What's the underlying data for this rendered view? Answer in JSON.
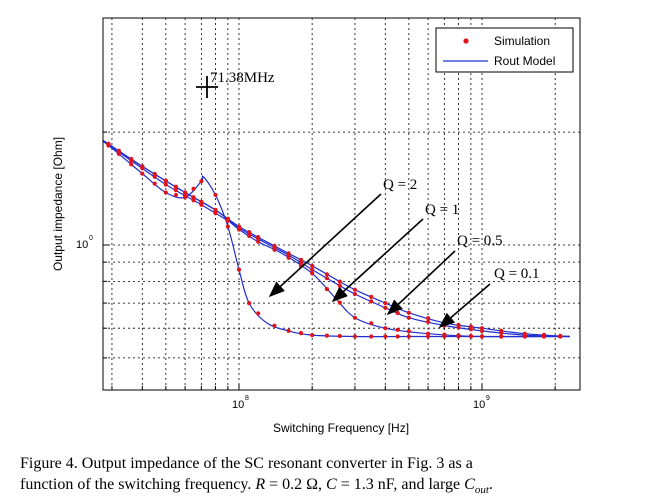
{
  "chart_data": {
    "type": "line",
    "xlabel": "Switching Frequency [Hz]",
    "ylabel": "Output impedance [Ohm]",
    "x_scale": "log",
    "y_scale": "log",
    "xlim": [
      26000000.0,
      2300000000.0
    ],
    "x_ticks": [
      {
        "base": "10",
        "exp": "8",
        "value": 100000000.0
      },
      {
        "base": "10",
        "exp": "9",
        "value": 1000000000.0
      }
    ],
    "y_ticks": [
      {
        "base": "10",
        "exp": "0",
        "value": 1
      }
    ],
    "grid": true,
    "legend": {
      "position": "top-right",
      "entries": [
        {
          "label": "Simulation",
          "style": "red-dots"
        },
        {
          "label": "Rout Model",
          "style": "blue-line"
        }
      ]
    },
    "annotations": [
      {
        "text": "71.38MHz",
        "marker": "plus"
      },
      {
        "text": "Q = 2"
      },
      {
        "text": "Q = 1"
      },
      {
        "text": "Q = 0.5"
      },
      {
        "text": "Q = 0.1"
      }
    ],
    "series": [
      {
        "name": "Q = 2",
        "color": "#1f2fd0",
        "x": [
          26000000.0,
          32000000.0,
          40000000.0,
          50000000.0,
          60000000.0,
          70000000.0,
          71400000.0,
          80000000.0,
          90000000.0,
          100000000.0,
          110000000.0,
          130000000.0,
          160000000.0,
          200000000.0,
          300000000.0,
          500000000.0,
          1000000000.0,
          2300000000.0
        ],
        "y": [
          1.95,
          1.75,
          1.55,
          1.38,
          1.34,
          1.48,
          1.52,
          1.36,
          1.12,
          0.86,
          0.7,
          0.62,
          0.59,
          0.575,
          0.57,
          0.57,
          0.57,
          0.57
        ]
      },
      {
        "name": "Q = 1",
        "color": "#1f2fd0",
        "x": [
          26000000.0,
          35000000.0,
          50000000.0,
          70000000.0,
          90000000.0,
          100000000.0,
          120000000.0,
          150000000.0,
          200000000.0,
          250000000.0,
          300000000.0,
          400000000.0,
          600000000.0,
          1000000000.0,
          2300000000.0
        ],
        "y": [
          1.95,
          1.7,
          1.45,
          1.28,
          1.16,
          1.1,
          1.02,
          0.95,
          0.84,
          0.72,
          0.64,
          0.6,
          0.58,
          0.57,
          0.57
        ]
      },
      {
        "name": "Q = 0.5",
        "color": "#1f2fd0",
        "x": [
          26000000.0,
          40000000.0,
          60000000.0,
          80000000.0,
          100000000.0,
          130000000.0,
          160000000.0,
          200000000.0,
          250000000.0,
          300000000.0,
          400000000.0,
          500000000.0,
          700000000.0,
          1000000000.0,
          1500000000.0,
          2300000000.0
        ],
        "y": [
          1.95,
          1.62,
          1.38,
          1.24,
          1.11,
          1.01,
          0.94,
          0.86,
          0.79,
          0.74,
          0.68,
          0.64,
          0.61,
          0.59,
          0.575,
          0.57
        ]
      },
      {
        "name": "Q = 0.1",
        "color": "#1f2fd0",
        "x": [
          26000000.0,
          40000000.0,
          60000000.0,
          80000000.0,
          100000000.0,
          130000000.0,
          160000000.0,
          200000000.0,
          250000000.0,
          300000000.0,
          400000000.0,
          500000000.0,
          700000000.0,
          1000000000.0,
          1500000000.0,
          2300000000.0
        ],
        "y": [
          1.95,
          1.62,
          1.38,
          1.24,
          1.12,
          1.02,
          0.95,
          0.88,
          0.81,
          0.76,
          0.7,
          0.66,
          0.62,
          0.6,
          0.58,
          0.57
        ]
      }
    ],
    "sim_markers": {
      "color": "#e0151b",
      "x": [
        26000000.0,
        29000000.0,
        32000000.0,
        36000000.0,
        40000000.0,
        45000000.0,
        50000000.0,
        55000000.0,
        60000000.0,
        65000000.0,
        70000000.0,
        80000000.0,
        90000000.0,
        100000000.0,
        110000000.0,
        120000000.0,
        140000000.0,
        160000000.0,
        180000000.0,
        200000000.0,
        230000000.0,
        260000000.0,
        300000000.0,
        350000000.0,
        400000000.0,
        450000000.0,
        500000000.0,
        600000000.0,
        700000000.0,
        800000000.0,
        900000000.0,
        1000000000.0,
        1200000000.0,
        1500000000.0,
        1800000000.0,
        2100000000.0
      ]
    }
  },
  "caption": {
    "line1": "Figure 4.   Output impedance of the SC resonant converter in Fig. 3 as a",
    "line2_a": "function of the switching frequency. ",
    "R_sym": "R",
    "R_val": " = 0.2 Ω, ",
    "C_sym": "C",
    "C_val": " = 1.3 nF, and large ",
    "Cout_sym": "C",
    "Cout_sub": "out",
    "line2_end": "."
  }
}
